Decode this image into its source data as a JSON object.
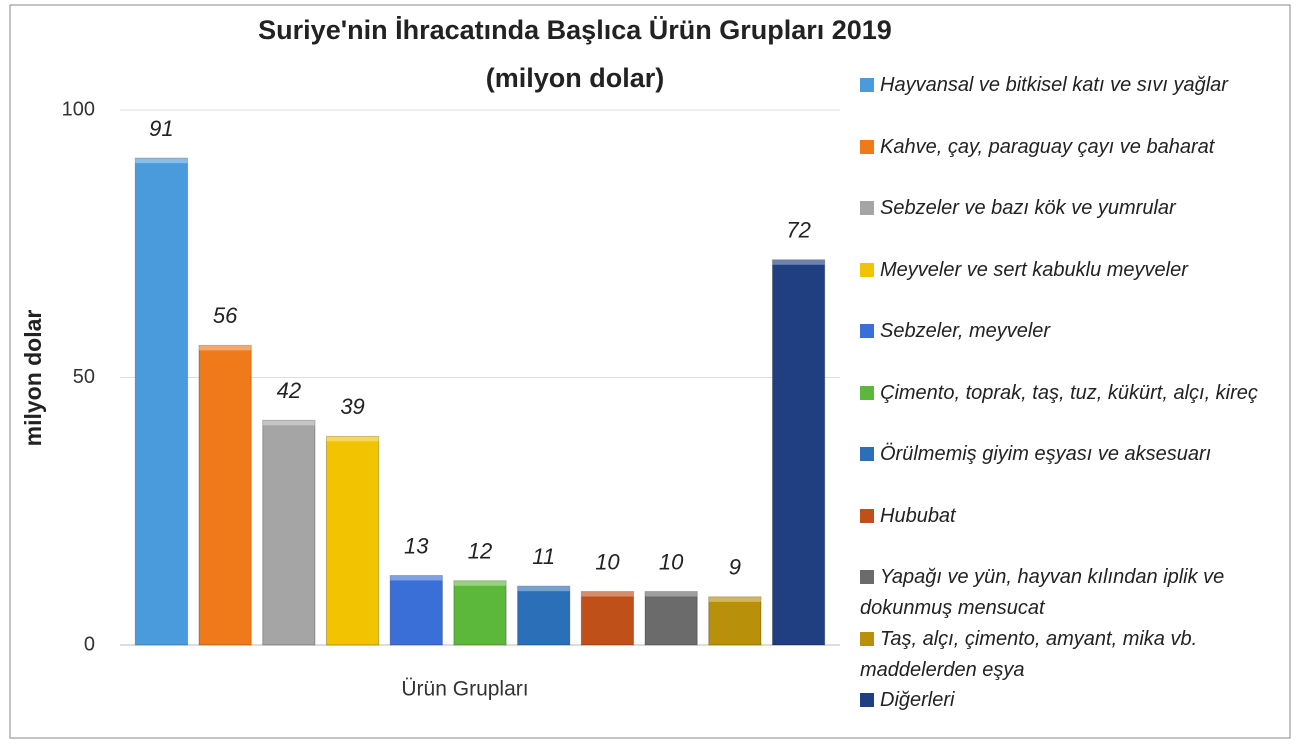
{
  "chart_data": {
    "type": "bar",
    "title": "Suriye'nin İhracatında Başlıca Ürün Grupları 2019",
    "subtitle": "(milyon dolar)",
    "y_label": "milyon dolar",
    "categories": [
      "Ürün Grupları"
    ],
    "series": [
      {
        "name": "Hayvansal ve bitkisel katı ve sıvı yağlar",
        "color": "#4a9bdc",
        "values": [
          91
        ]
      },
      {
        "name": "Kahve, çay, paraguay çayı ve baharat",
        "color": "#f07a1a",
        "values": [
          56
        ]
      },
      {
        "name": "Sebzeler ve bazı kök ve yumrular",
        "color": "#a5a5a5",
        "values": [
          42
        ]
      },
      {
        "name": "Meyveler ve sert kabuklu meyveler",
        "color": "#f2c300",
        "values": [
          39
        ]
      },
      {
        "name": "Sebzeler, meyveler",
        "color": "#3a6fd8",
        "values": [
          13
        ]
      },
      {
        "name": "Çimento, toprak, taş, tuz, kükürt, alçı, kireç",
        "color": "#5cb83a",
        "values": [
          12
        ]
      },
      {
        "name": "Örülmemiş giyim eşyası ve aksesuarı",
        "color": "#2a6fb8",
        "values": [
          11
        ]
      },
      {
        "name": "Hububat",
        "color": "#c0501a",
        "values": [
          10
        ]
      },
      {
        "name": "Yapağı ve yün, hayvan kılından iplik ve dokunmuş mensucat",
        "color": "#6b6b6b",
        "values": [
          10
        ]
      },
      {
        "name": "Taş, alçı, çimento, amyant, mika vb. maddelerden eşya",
        "color": "#b8900a",
        "values": [
          9
        ]
      },
      {
        "name": "Diğerleri",
        "color": "#1f3f80",
        "values": [
          72
        ]
      }
    ],
    "ylim": [
      0,
      100
    ],
    "yticks": [
      0,
      50,
      100
    ],
    "grid": true,
    "legend": "right"
  }
}
